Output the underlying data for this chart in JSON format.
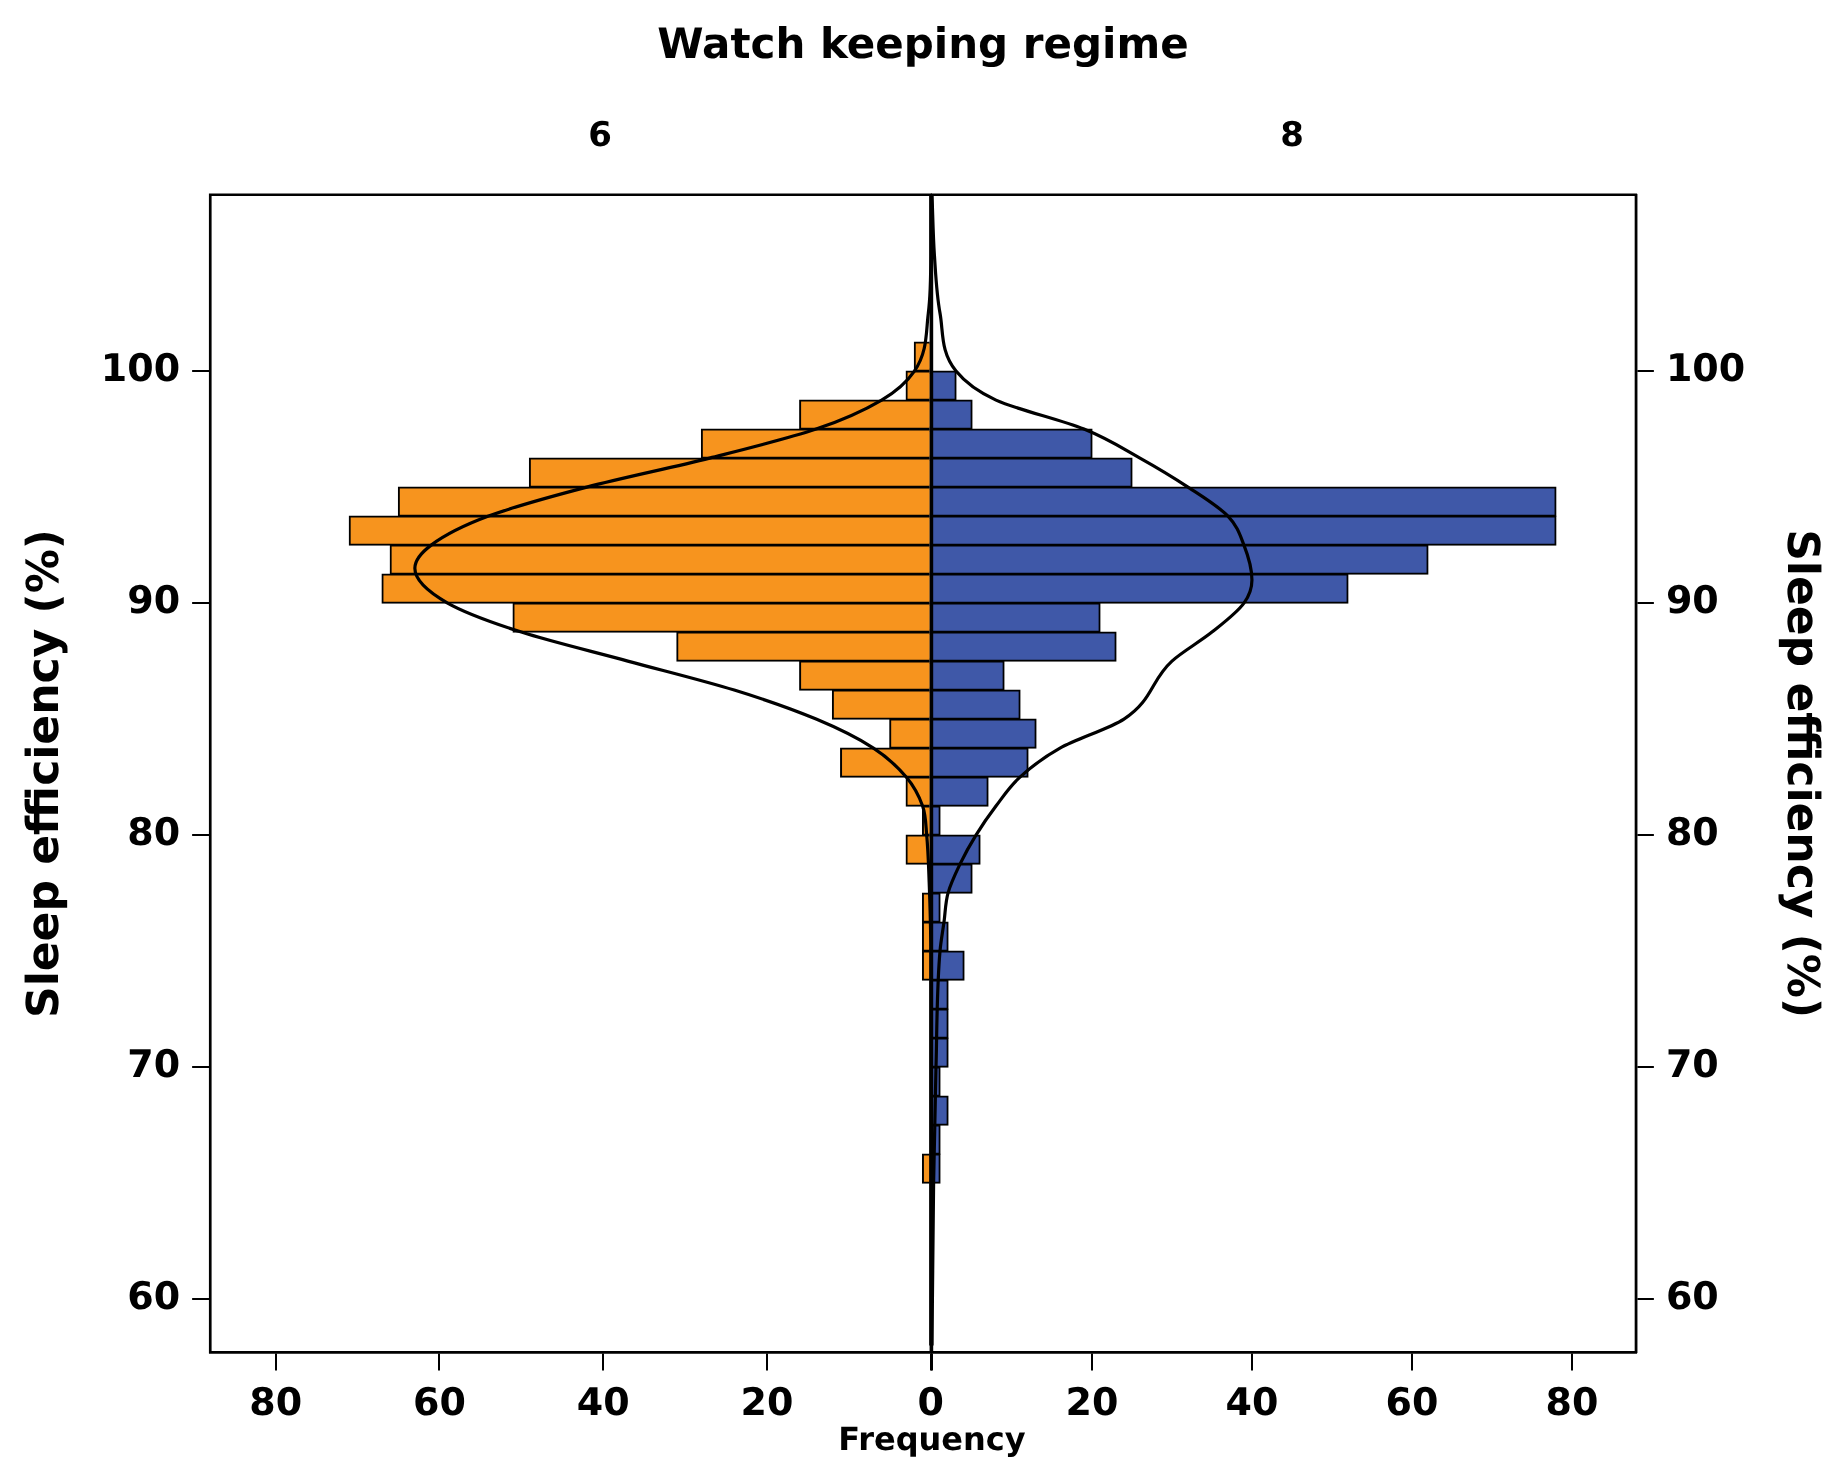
{
  "chart_data": [
    {
      "type": "histogram",
      "orientation": "horizontal",
      "title": "Watch keeping regime",
      "xlabel": "Frequency",
      "ylabel": "Sleep efficiency (%)",
      "bins": [
        65,
        66.25,
        67.5,
        68.75,
        70,
        71.25,
        72.5,
        73.75,
        75,
        76.25,
        77.5,
        78.75,
        80,
        81.25,
        82.5,
        83.75,
        85,
        86.25,
        87.5,
        88.75,
        90,
        91.25,
        92.5,
        93.75,
        95,
        96.25,
        97.5,
        98.75,
        100,
        101.25
      ],
      "series": [
        {
          "name": "6",
          "color": "#f7941e",
          "values": [
            1,
            0,
            0,
            0,
            0,
            0,
            0,
            1,
            1,
            1,
            0,
            3,
            1,
            3,
            11,
            5,
            12,
            16,
            31,
            51,
            67,
            66,
            71,
            65,
            49,
            28,
            16,
            3,
            2
          ]
        },
        {
          "type": "line",
          "color": "#000000",
          "x": [
            58,
            75,
            78,
            80,
            81.25,
            82.5,
            83.75,
            85,
            86.25,
            87.5,
            88.75,
            90,
            91.5,
            92.5,
            93.75,
            95,
            96.25,
            97.5,
            98.75,
            100,
            102.5,
            105,
            107.6
          ],
          "values": [
            0,
            0,
            0.2,
            0.5,
            1,
            3,
            7,
            14,
            24,
            37,
            50,
            59,
            63,
            61,
            54,
            42,
            27,
            14,
            6,
            2,
            0.3,
            0,
            0
          ]
        }
      ],
      "xlim": [
        88,
        0
      ],
      "xticks": [
        80,
        60,
        40,
        20,
        0
      ],
      "ylim": [
        57.7,
        107.6
      ],
      "yticks": [
        60,
        70,
        80,
        90,
        100
      ],
      "grid": false,
      "legend": false
    },
    {
      "type": "histogram",
      "orientation": "horizontal",
      "ylabel": "Sleep efficiency (%)",
      "bins": [
        65,
        66.25,
        67.5,
        68.75,
        70,
        71.25,
        72.5,
        73.75,
        75,
        76.25,
        77.5,
        78.75,
        80,
        81.25,
        82.5,
        83.75,
        85,
        86.25,
        87.5,
        88.75,
        90,
        91.25,
        92.5,
        93.75,
        95,
        96.25,
        97.5,
        98.75,
        100,
        101.25
      ],
      "series": [
        {
          "name": "8",
          "color": "#3f58a8",
          "values": [
            1,
            1,
            2,
            1,
            2,
            2,
            2,
            4,
            2,
            1,
            5,
            6,
            1,
            7,
            12,
            13,
            11,
            9,
            23,
            21,
            52,
            62,
            78,
            78,
            25,
            20,
            5,
            3,
            0
          ]
        },
        {
          "type": "line",
          "color": "#000000",
          "x": [
            58,
            65,
            70,
            75,
            76.25,
            77.5,
            78.75,
            80,
            81.25,
            82.5,
            83.75,
            85,
            87.5,
            88.75,
            90,
            91,
            92.5,
            93.75,
            95,
            96.25,
            97.5,
            98.75,
            100,
            102.5,
            105,
            107.6
          ],
          "values": [
            0,
            0.2,
            0.5,
            1,
            1.5,
            2,
            3.5,
            5.5,
            8,
            11,
            16,
            24,
            30,
            35,
            39,
            40,
            39,
            37,
            32,
            26,
            19,
            8,
            3,
            1,
            0.3,
            0
          ]
        }
      ],
      "xlim": [
        0,
        88
      ],
      "xticks": [
        {
          "value": 0,
          "label": null
        },
        20,
        40,
        60,
        80
      ],
      "ylim": [
        57.7,
        107.6
      ],
      "yticks": [
        60,
        70,
        80,
        90,
        100
      ],
      "grid": false,
      "legend": false
    }
  ]
}
